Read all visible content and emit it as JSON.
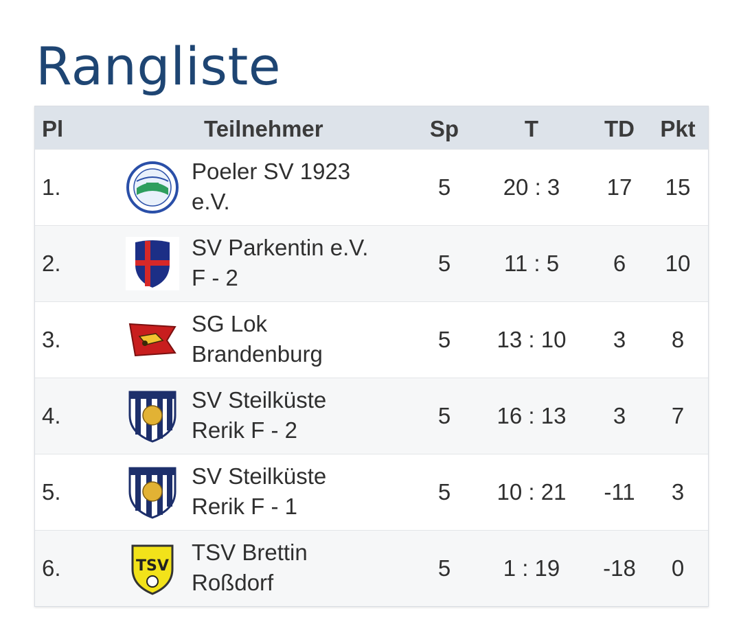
{
  "page": {
    "title": "Rangliste"
  },
  "table": {
    "headers": {
      "pl": "Pl",
      "teilnehmer": "Teilnehmer",
      "sp": "Sp",
      "t": "T",
      "td": "TD",
      "pkt": "Pkt"
    },
    "rows": [
      {
        "pl": "1.",
        "team_line1": "Poeler SV 1923",
        "team_line2": "e.V.",
        "sp": "5",
        "t": "20 : 3",
        "td": "17",
        "pkt": "15",
        "logo": "poeler-sv-crest"
      },
      {
        "pl": "2.",
        "team_line1": "SV Parkentin e.V.",
        "team_line2": "F - 2",
        "sp": "5",
        "t": "11 : 5",
        "td": "6",
        "pkt": "10",
        "logo": "parkentin-crest"
      },
      {
        "pl": "3.",
        "team_line1": "SG Lok",
        "team_line2": "Brandenburg",
        "sp": "5",
        "t": "13 : 10",
        "td": "3",
        "pkt": "8",
        "logo": "lok-brandenburg-flag"
      },
      {
        "pl": "4.",
        "team_line1": "SV Steilküste",
        "team_line2": "Rerik F - 2",
        "sp": "5",
        "t": "16 : 13",
        "td": "3",
        "pkt": "7",
        "logo": "steilkueste-crest"
      },
      {
        "pl": "5.",
        "team_line1": "SV Steilküste",
        "team_line2": "Rerik F - 1",
        "sp": "5",
        "t": "10 : 21",
        "td": "-11",
        "pkt": "3",
        "logo": "steilkueste-crest"
      },
      {
        "pl": "6.",
        "team_line1": "TSV Brettin",
        "team_line2": "Roßdorf",
        "sp": "5",
        "t": "1 : 19",
        "td": "-18",
        "pkt": "0",
        "logo": "tsv-brettin-crest"
      }
    ]
  },
  "colors": {
    "title": "#1e4573",
    "header_bg": "#dde3ea",
    "alt_row_bg": "#f6f7f8"
  }
}
